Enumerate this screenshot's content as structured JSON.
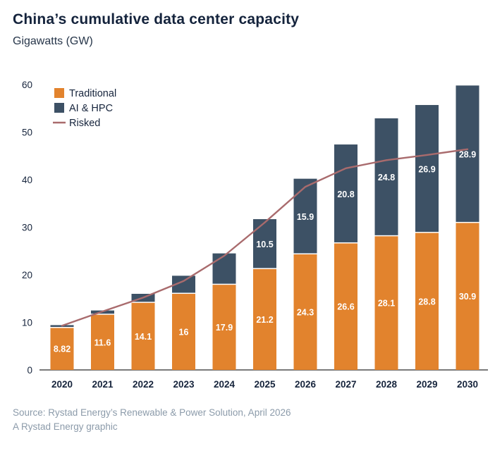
{
  "title": "China’s cumulative data center capacity",
  "subtitle": "Gigawatts (GW)",
  "source": {
    "line1": "Source: Rystad Energy’s Renewable & Power Solution, April 2026",
    "line2": "A Rystad Energy graphic"
  },
  "colors": {
    "title_text": "#14233C",
    "axis_text": "#16243C",
    "baseline": "#2B2B2B",
    "bar_label_text": "#FFFFFF",
    "source_text": "#8C9BAA",
    "background": "#FFFFFF",
    "traditional": "#E2832D",
    "ai_hpc": "#3D5165",
    "risked_line": "#A96B6D"
  },
  "chart_data": {
    "type": "bar",
    "stacked": true,
    "title": "China’s cumulative data center capacity",
    "ylabel": "Gigawatts (GW)",
    "xlabel": "",
    "ylim": [
      0,
      60
    ],
    "yticks": [
      0,
      10,
      20,
      30,
      40,
      50,
      60
    ],
    "grid": false,
    "legend_position": "top-left-inside",
    "categories": [
      "2020",
      "2021",
      "2022",
      "2023",
      "2024",
      "2025",
      "2026",
      "2027",
      "2028",
      "2029",
      "2030"
    ],
    "series": [
      {
        "name": "Traditional",
        "color": "#E2832D",
        "values": [
          8.82,
          11.6,
          14.1,
          16,
          17.9,
          21.2,
          24.3,
          26.6,
          28.1,
          28.8,
          30.9
        ],
        "labels": [
          "8.82",
          "11.6",
          "14.1",
          "16",
          "17.9",
          "21.2",
          "24.3",
          "26.6",
          "28.1",
          "28.8",
          "30.9"
        ]
      },
      {
        "name": "AI & HPC",
        "color": "#3D5165",
        "values": [
          0.6,
          0.9,
          1.9,
          3.8,
          6.6,
          10.5,
          15.9,
          20.8,
          24.8,
          26.9,
          28.9
        ],
        "labels": [
          "",
          "",
          "",
          "",
          "",
          "10.5",
          "15.9",
          "20.8",
          "24.8",
          "26.9",
          "28.9"
        ]
      }
    ],
    "line_series": {
      "name": "Risked",
      "color": "#A96B6D",
      "values": [
        9.3,
        12.3,
        15.2,
        18.7,
        24.0,
        31.0,
        38.5,
        42.4,
        44.1,
        45.2,
        46.4
      ]
    },
    "legend": [
      {
        "label": "Traditional",
        "swatch": "square",
        "color": "#E2832D"
      },
      {
        "label": "AI & HPC",
        "swatch": "square",
        "color": "#3D5165"
      },
      {
        "label": "Risked",
        "swatch": "line",
        "color": "#A96B6D"
      }
    ]
  }
}
